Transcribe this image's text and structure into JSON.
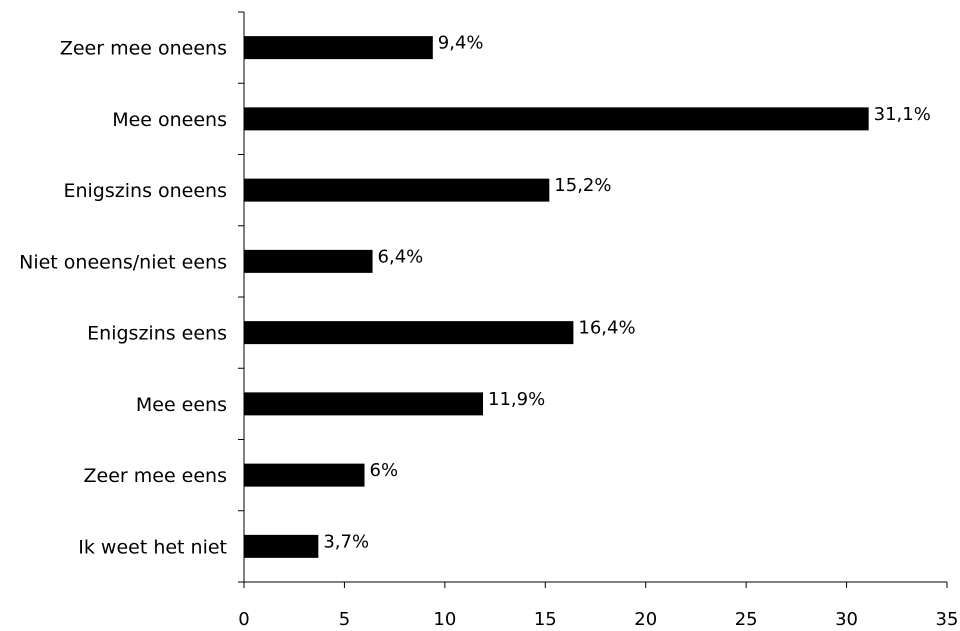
{
  "chart_data": {
    "type": "bar",
    "orientation": "horizontal",
    "categories": [
      "Zeer mee oneens",
      "Mee oneens",
      "Enigszins oneens",
      "Niet oneens/niet eens",
      "Enigszins eens",
      "Mee eens",
      "Zeer mee eens",
      "Ik weet het niet"
    ],
    "values": [
      9.4,
      31.1,
      15.2,
      6.4,
      16.4,
      11.9,
      6.0,
      3.7
    ],
    "data_labels": [
      "9,4%",
      "31,1%",
      "15,2%",
      "6,4%",
      "16,4%",
      "11,9%",
      "6%",
      "3,7%"
    ],
    "x_ticks": [
      0,
      5,
      10,
      15,
      20,
      25,
      30,
      35
    ],
    "x_tick_labels": [
      "0",
      "5",
      "10",
      "15",
      "20",
      "25",
      "30",
      "35"
    ],
    "xlim": [
      0,
      35
    ],
    "bar_color": "#000000",
    "grid": false,
    "legend": "none",
    "title": "",
    "xlabel": "",
    "ylabel": ""
  }
}
